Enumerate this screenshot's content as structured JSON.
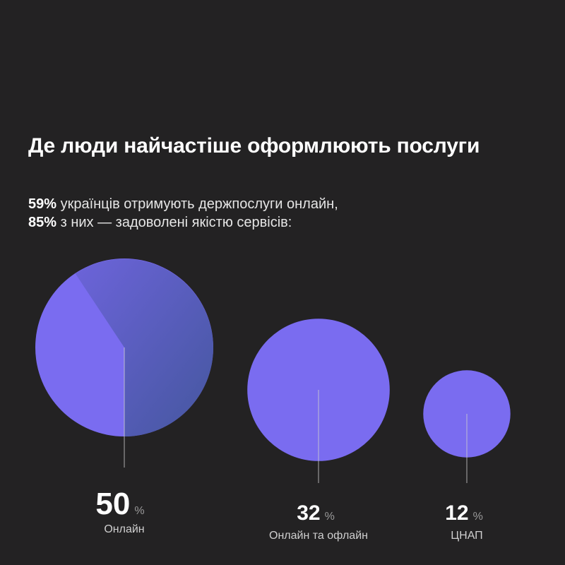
{
  "header": {
    "title": "Де люди найчастіше оформлюють послуги",
    "subtitle_line1_bold": "59%",
    "subtitle_line1_text": " українців отримують держпослуги онлайн,",
    "subtitle_line2_bold": "85%",
    "subtitle_line2_text": " з них — задоволені якістю сервісів:"
  },
  "chart_data": {
    "type": "bubble",
    "title": "Де люди найчастіше оформлюють послуги",
    "categories": [
      "Онлайн",
      "Онлайн та офлайн",
      "ЦНАП"
    ],
    "values": [
      50,
      32,
      12
    ],
    "unit": "%",
    "colors": {
      "bubble": "#7a6cf0",
      "bubble_dark": "#3e5b9a",
      "line": "#cfcfcf",
      "background": "#232223"
    }
  }
}
